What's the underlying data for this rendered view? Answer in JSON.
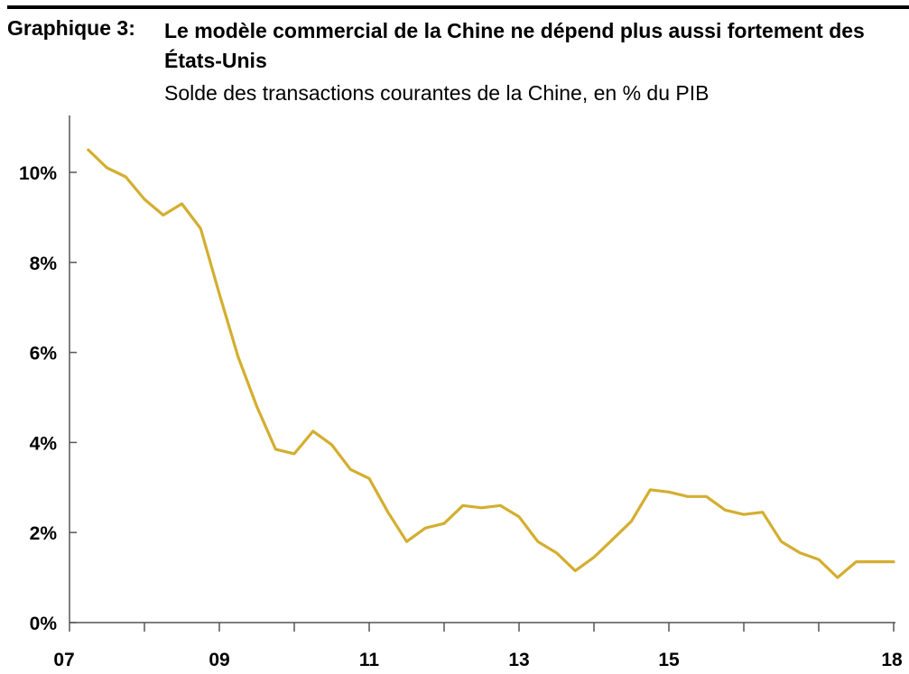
{
  "header": {
    "figure_label": "Graphique 3:",
    "title": "Le modèle commercial de la Chine ne dépend plus aussi fortement des États-Unis",
    "subtitle": "Solde des transactions courantes de la Chine, en % du PIB"
  },
  "chart_data": {
    "type": "line",
    "title": "Le modèle commercial de la Chine ne dépend plus aussi fortement des États-Unis",
    "subtitle": "Solde des transactions courantes de la Chine, en % du PIB",
    "xlabel": "",
    "ylabel": "",
    "x_range": [
      2007.0,
      2018.0
    ],
    "ylim": [
      0,
      11
    ],
    "y_ticks": [
      {
        "value": 0,
        "label": "0%"
      },
      {
        "value": 2,
        "label": "2%"
      },
      {
        "value": 4,
        "label": "4%"
      },
      {
        "value": 6,
        "label": "6%"
      },
      {
        "value": 8,
        "label": "8%"
      },
      {
        "value": 10,
        "label": "10%"
      }
    ],
    "x_ticks": [
      {
        "value": 2007.0,
        "label": "07"
      },
      {
        "value": 2009.0,
        "label": "09"
      },
      {
        "value": 2011.0,
        "label": "11"
      },
      {
        "value": 2013.0,
        "label": "13"
      },
      {
        "value": 2015.0,
        "label": "15"
      },
      {
        "value": 2018.0,
        "label": "18"
      }
    ],
    "grid": false,
    "legend": "none",
    "line_color": "#d4ae2f",
    "series": [
      {
        "x": [
          2007.25,
          2007.5,
          2007.75,
          2008.0,
          2008.25,
          2008.5,
          2008.75,
          2009.0,
          2009.25,
          2009.5,
          2009.75,
          2010.0,
          2010.25,
          2010.5,
          2010.75,
          2011.0,
          2011.25,
          2011.5,
          2011.75,
          2012.0,
          2012.25,
          2012.5,
          2012.75,
          2013.0,
          2013.25,
          2013.5,
          2013.75,
          2014.0,
          2014.25,
          2014.5,
          2014.75,
          2015.0,
          2015.25,
          2015.5,
          2015.75,
          2016.0,
          2016.25,
          2016.5,
          2016.75,
          2017.0,
          2017.25,
          2017.5,
          2017.75,
          2018.0
        ],
        "values": [
          10.5,
          10.1,
          9.9,
          9.4,
          9.05,
          9.3,
          8.75,
          7.3,
          5.9,
          4.8,
          3.85,
          3.75,
          4.25,
          3.95,
          3.4,
          3.2,
          2.45,
          1.8,
          2.1,
          2.2,
          2.6,
          2.55,
          2.6,
          2.35,
          1.8,
          1.55,
          1.15,
          1.45,
          1.85,
          2.25,
          2.95,
          2.9,
          2.8,
          2.8,
          2.5,
          2.4,
          2.45,
          1.8,
          1.55,
          1.4,
          1.0,
          1.35,
          1.35,
          1.35
        ]
      }
    ]
  }
}
